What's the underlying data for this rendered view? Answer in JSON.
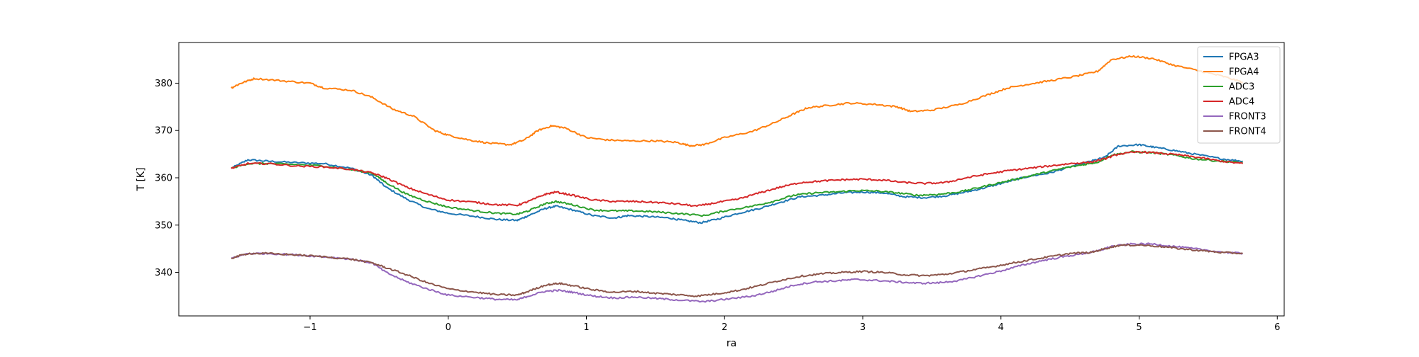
{
  "chart_data": {
    "type": "line",
    "title": "",
    "xlabel": "ra",
    "ylabel": "T [K]",
    "xlim": [
      -1.95,
      6.05
    ],
    "ylim": [
      330.8,
      388.6
    ],
    "xticks": [
      -1,
      0,
      1,
      2,
      3,
      4,
      5,
      6
    ],
    "yticks": [
      340,
      350,
      360,
      370,
      380
    ],
    "grid": false,
    "legend_position": "top-right",
    "series": [
      {
        "name": "FPGA3",
        "color": "#1f77b4",
        "points": [
          [
            -1.57,
            362.0
          ],
          [
            -1.45,
            363.8
          ],
          [
            -1.3,
            363.5
          ],
          [
            -1.1,
            363.2
          ],
          [
            -0.9,
            363.0
          ],
          [
            -0.7,
            362.0
          ],
          [
            -0.55,
            360.5
          ],
          [
            -0.45,
            358.0
          ],
          [
            -0.3,
            355.5
          ],
          [
            -0.15,
            353.5
          ],
          [
            0.0,
            352.5
          ],
          [
            0.2,
            351.8
          ],
          [
            0.35,
            351.2
          ],
          [
            0.5,
            351.0
          ],
          [
            0.58,
            352.0
          ],
          [
            0.7,
            353.5
          ],
          [
            0.78,
            354.0
          ],
          [
            0.9,
            353.2
          ],
          [
            1.05,
            352.0
          ],
          [
            1.2,
            351.5
          ],
          [
            1.3,
            352.0
          ],
          [
            1.45,
            351.8
          ],
          [
            1.6,
            351.5
          ],
          [
            1.7,
            351.0
          ],
          [
            1.83,
            350.5
          ],
          [
            1.95,
            351.3
          ],
          [
            2.1,
            352.5
          ],
          [
            2.25,
            353.5
          ],
          [
            2.4,
            354.8
          ],
          [
            2.55,
            356.0
          ],
          [
            2.7,
            356.3
          ],
          [
            2.85,
            356.8
          ],
          [
            3.0,
            357.0
          ],
          [
            3.15,
            356.8
          ],
          [
            3.3,
            356.0
          ],
          [
            3.45,
            355.8
          ],
          [
            3.6,
            356.2
          ],
          [
            3.75,
            357.0
          ],
          [
            3.9,
            358.0
          ],
          [
            4.05,
            359.2
          ],
          [
            4.2,
            360.3
          ],
          [
            4.35,
            361.0
          ],
          [
            4.5,
            362.3
          ],
          [
            4.65,
            363.5
          ],
          [
            4.75,
            364.3
          ],
          [
            4.85,
            366.7
          ],
          [
            5.0,
            367.0
          ],
          [
            5.1,
            366.5
          ],
          [
            5.25,
            365.8
          ],
          [
            5.4,
            365.0
          ],
          [
            5.6,
            364.0
          ],
          [
            5.75,
            363.5
          ]
        ]
      },
      {
        "name": "FPGA4",
        "color": "#ff7f0e",
        "points": [
          [
            -1.57,
            379.0
          ],
          [
            -1.5,
            380.0
          ],
          [
            -1.4,
            381.0
          ],
          [
            -1.2,
            380.5
          ],
          [
            -1.0,
            380.0
          ],
          [
            -0.9,
            379.0
          ],
          [
            -0.7,
            378.5
          ],
          [
            -0.55,
            377.0
          ],
          [
            -0.4,
            374.5
          ],
          [
            -0.25,
            373.0
          ],
          [
            -0.1,
            370.0
          ],
          [
            0.0,
            369.0
          ],
          [
            0.15,
            368.0
          ],
          [
            0.3,
            367.3
          ],
          [
            0.45,
            367.0
          ],
          [
            0.55,
            368.0
          ],
          [
            0.65,
            370.0
          ],
          [
            0.75,
            371.0
          ],
          [
            0.85,
            370.5
          ],
          [
            1.0,
            368.5
          ],
          [
            1.15,
            368.0
          ],
          [
            1.3,
            367.8
          ],
          [
            1.5,
            367.8
          ],
          [
            1.65,
            367.5
          ],
          [
            1.75,
            366.8
          ],
          [
            1.85,
            367.0
          ],
          [
            2.0,
            368.5
          ],
          [
            2.2,
            369.8
          ],
          [
            2.35,
            371.5
          ],
          [
            2.5,
            373.5
          ],
          [
            2.6,
            374.8
          ],
          [
            2.75,
            375.3
          ],
          [
            2.9,
            375.8
          ],
          [
            3.1,
            375.5
          ],
          [
            3.25,
            375.0
          ],
          [
            3.35,
            374.0
          ],
          [
            3.5,
            374.3
          ],
          [
            3.7,
            375.5
          ],
          [
            3.9,
            377.5
          ],
          [
            4.05,
            379.0
          ],
          [
            4.2,
            379.8
          ],
          [
            4.35,
            380.5
          ],
          [
            4.55,
            381.5
          ],
          [
            4.7,
            382.5
          ],
          [
            4.8,
            385.0
          ],
          [
            4.95,
            385.7
          ],
          [
            5.1,
            385.2
          ],
          [
            5.25,
            383.8
          ],
          [
            5.45,
            382.5
          ],
          [
            5.6,
            381.5
          ],
          [
            5.75,
            380.2
          ]
        ]
      },
      {
        "name": "ADC3",
        "color": "#2ca02c",
        "points": [
          [
            -1.57,
            362.0
          ],
          [
            -1.45,
            363.0
          ],
          [
            -1.3,
            363.0
          ],
          [
            -1.1,
            362.8
          ],
          [
            -0.9,
            362.5
          ],
          [
            -0.7,
            361.7
          ],
          [
            -0.55,
            361.0
          ],
          [
            -0.45,
            359.0
          ],
          [
            -0.3,
            356.5
          ],
          [
            -0.15,
            355.0
          ],
          [
            0.0,
            353.8
          ],
          [
            0.2,
            353.0
          ],
          [
            0.35,
            352.5
          ],
          [
            0.5,
            352.3
          ],
          [
            0.58,
            353.0
          ],
          [
            0.7,
            354.5
          ],
          [
            0.78,
            355.0
          ],
          [
            0.9,
            354.3
          ],
          [
            1.05,
            353.2
          ],
          [
            1.2,
            353.0
          ],
          [
            1.35,
            353.0
          ],
          [
            1.5,
            352.8
          ],
          [
            1.65,
            352.5
          ],
          [
            1.85,
            352.0
          ],
          [
            2.0,
            353.0
          ],
          [
            2.2,
            354.0
          ],
          [
            2.35,
            355.0
          ],
          [
            2.5,
            356.3
          ],
          [
            2.65,
            356.8
          ],
          [
            2.8,
            357.0
          ],
          [
            2.95,
            357.3
          ],
          [
            3.1,
            357.2
          ],
          [
            3.25,
            356.8
          ],
          [
            3.4,
            356.3
          ],
          [
            3.55,
            356.5
          ],
          [
            3.7,
            357.0
          ],
          [
            3.85,
            358.0
          ],
          [
            4.0,
            359.0
          ],
          [
            4.15,
            360.0
          ],
          [
            4.3,
            361.0
          ],
          [
            4.45,
            362.0
          ],
          [
            4.6,
            362.8
          ],
          [
            4.7,
            363.3
          ],
          [
            4.8,
            364.8
          ],
          [
            4.95,
            365.5
          ],
          [
            5.1,
            365.3
          ],
          [
            5.25,
            364.8
          ],
          [
            5.4,
            364.0
          ],
          [
            5.6,
            363.5
          ],
          [
            5.75,
            363.2
          ]
        ]
      },
      {
        "name": "ADC4",
        "color": "#d62728",
        "points": [
          [
            -1.57,
            362.0
          ],
          [
            -1.45,
            363.0
          ],
          [
            -1.3,
            363.0
          ],
          [
            -1.1,
            362.5
          ],
          [
            -0.9,
            362.3
          ],
          [
            -0.7,
            361.8
          ],
          [
            -0.55,
            361.0
          ],
          [
            -0.45,
            360.0
          ],
          [
            -0.3,
            358.0
          ],
          [
            -0.15,
            356.5
          ],
          [
            0.0,
            355.3
          ],
          [
            0.2,
            354.8
          ],
          [
            0.35,
            354.3
          ],
          [
            0.5,
            354.2
          ],
          [
            0.58,
            355.0
          ],
          [
            0.7,
            356.5
          ],
          [
            0.78,
            357.0
          ],
          [
            0.9,
            356.3
          ],
          [
            1.05,
            355.3
          ],
          [
            1.2,
            355.0
          ],
          [
            1.35,
            355.0
          ],
          [
            1.5,
            354.8
          ],
          [
            1.65,
            354.5
          ],
          [
            1.8,
            354.0
          ],
          [
            1.95,
            354.8
          ],
          [
            2.1,
            355.5
          ],
          [
            2.25,
            356.8
          ],
          [
            2.4,
            358.0
          ],
          [
            2.55,
            359.0
          ],
          [
            2.7,
            359.3
          ],
          [
            2.85,
            359.6
          ],
          [
            3.0,
            359.7
          ],
          [
            3.15,
            359.5
          ],
          [
            3.3,
            359.0
          ],
          [
            3.45,
            358.8
          ],
          [
            3.6,
            359.0
          ],
          [
            3.75,
            360.0
          ],
          [
            3.9,
            360.8
          ],
          [
            4.05,
            361.5
          ],
          [
            4.2,
            362.0
          ],
          [
            4.35,
            362.5
          ],
          [
            4.5,
            363.0
          ],
          [
            4.65,
            363.3
          ],
          [
            4.75,
            364.0
          ],
          [
            4.85,
            365.0
          ],
          [
            5.0,
            365.5
          ],
          [
            5.15,
            365.2
          ],
          [
            5.3,
            364.8
          ],
          [
            5.45,
            364.2
          ],
          [
            5.6,
            363.5
          ],
          [
            5.75,
            363.0
          ]
        ]
      },
      {
        "name": "FRONT3",
        "color": "#9467bd",
        "points": [
          [
            -1.57,
            343.0
          ],
          [
            -1.45,
            344.0
          ],
          [
            -1.3,
            344.0
          ],
          [
            -1.1,
            343.7
          ],
          [
            -0.9,
            343.3
          ],
          [
            -0.7,
            342.8
          ],
          [
            -0.55,
            342.0
          ],
          [
            -0.45,
            340.0
          ],
          [
            -0.3,
            338.0
          ],
          [
            -0.15,
            336.5
          ],
          [
            0.0,
            335.2
          ],
          [
            0.2,
            334.7
          ],
          [
            0.35,
            334.3
          ],
          [
            0.5,
            334.2
          ],
          [
            0.58,
            335.0
          ],
          [
            0.7,
            336.0
          ],
          [
            0.8,
            336.2
          ],
          [
            0.9,
            335.8
          ],
          [
            1.05,
            335.0
          ],
          [
            1.2,
            334.6
          ],
          [
            1.35,
            334.8
          ],
          [
            1.5,
            334.5
          ],
          [
            1.65,
            334.2
          ],
          [
            1.85,
            333.8
          ],
          [
            2.0,
            334.3
          ],
          [
            2.2,
            335.0
          ],
          [
            2.35,
            336.0
          ],
          [
            2.5,
            337.3
          ],
          [
            2.65,
            338.0
          ],
          [
            2.8,
            338.2
          ],
          [
            2.95,
            338.5
          ],
          [
            3.1,
            338.3
          ],
          [
            3.25,
            338.0
          ],
          [
            3.4,
            337.7
          ],
          [
            3.55,
            337.8
          ],
          [
            3.7,
            338.3
          ],
          [
            3.85,
            339.3
          ],
          [
            4.0,
            340.3
          ],
          [
            4.15,
            341.5
          ],
          [
            4.3,
            342.5
          ],
          [
            4.45,
            343.3
          ],
          [
            4.6,
            344.0
          ],
          [
            4.7,
            344.5
          ],
          [
            4.8,
            345.5
          ],
          [
            4.95,
            346.0
          ],
          [
            5.1,
            346.0
          ],
          [
            5.25,
            345.5
          ],
          [
            5.4,
            345.0
          ],
          [
            5.6,
            344.3
          ],
          [
            5.75,
            344.0
          ]
        ]
      },
      {
        "name": "FRONT4",
        "color": "#8c564b",
        "points": [
          [
            -1.57,
            343.0
          ],
          [
            -1.45,
            344.0
          ],
          [
            -1.3,
            344.0
          ],
          [
            -1.1,
            343.7
          ],
          [
            -0.9,
            343.3
          ],
          [
            -0.7,
            342.8
          ],
          [
            -0.55,
            342.0
          ],
          [
            -0.45,
            341.0
          ],
          [
            -0.3,
            339.5
          ],
          [
            -0.15,
            337.8
          ],
          [
            0.0,
            336.5
          ],
          [
            0.2,
            335.8
          ],
          [
            0.35,
            335.3
          ],
          [
            0.5,
            335.2
          ],
          [
            0.58,
            336.0
          ],
          [
            0.7,
            337.3
          ],
          [
            0.8,
            337.7
          ],
          [
            0.9,
            337.2
          ],
          [
            1.05,
            336.3
          ],
          [
            1.2,
            335.8
          ],
          [
            1.35,
            336.0
          ],
          [
            1.5,
            335.6
          ],
          [
            1.65,
            335.3
          ],
          [
            1.8,
            335.0
          ],
          [
            1.95,
            335.5
          ],
          [
            2.1,
            336.2
          ],
          [
            2.25,
            337.2
          ],
          [
            2.4,
            338.3
          ],
          [
            2.55,
            339.2
          ],
          [
            2.7,
            339.7
          ],
          [
            2.85,
            340.0
          ],
          [
            3.0,
            340.2
          ],
          [
            3.15,
            340.0
          ],
          [
            3.3,
            339.5
          ],
          [
            3.45,
            339.3
          ],
          [
            3.6,
            339.6
          ],
          [
            3.75,
            340.3
          ],
          [
            3.9,
            341.0
          ],
          [
            4.05,
            341.8
          ],
          [
            4.2,
            342.6
          ],
          [
            4.35,
            343.3
          ],
          [
            4.5,
            344.0
          ],
          [
            4.65,
            344.2
          ],
          [
            4.75,
            345.0
          ],
          [
            4.85,
            345.7
          ],
          [
            5.0,
            345.8
          ],
          [
            5.15,
            345.5
          ],
          [
            5.3,
            345.0
          ],
          [
            5.45,
            344.6
          ],
          [
            5.6,
            344.2
          ],
          [
            5.75,
            344.0
          ]
        ]
      }
    ]
  }
}
